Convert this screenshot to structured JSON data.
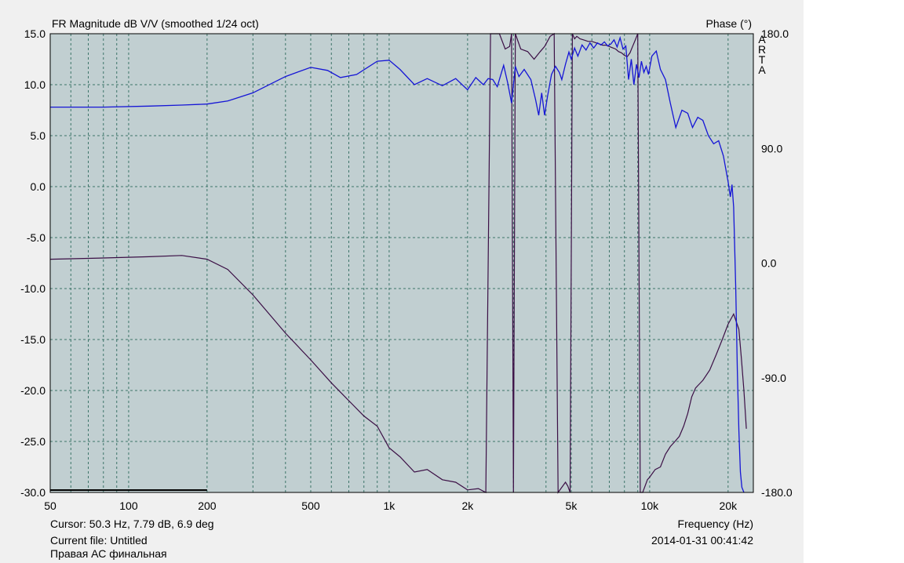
{
  "header": {
    "title": "FR Magnitude dB V/V (smoothed 1/24 oct)",
    "phase_label": "Phase (°)",
    "brand": [
      "A",
      "R",
      "T",
      "A"
    ]
  },
  "footer": {
    "cursor": "Cursor: 50.3 Hz, 7.79 dB, 6.9 deg",
    "file": "Current file: Untitled",
    "note": "Правая АС финальная",
    "xlabel": "Frequency (Hz)",
    "timestamp": "2014-01-31   00:41:42"
  },
  "colors": {
    "plot_bg": "#c1cfd1",
    "grid": "#2f6b5e",
    "magnitude": "#1515d6",
    "phase": "#3b0f45",
    "frame_bg": "#f0f0f0"
  },
  "chart_data": {
    "type": "line",
    "title": "FR Magnitude dB V/V (smoothed 1/24 oct)",
    "xlabel": "Frequency (Hz)",
    "ylabel": "FR Magnitude dB V/V",
    "y2label": "Phase (°)",
    "xscale": "log",
    "xlim": [
      50,
      25000
    ],
    "ylim": [
      -30,
      15
    ],
    "y2lim": [
      -180,
      180
    ],
    "grid": true,
    "x_ticks": [
      {
        "value": 50,
        "label": "50"
      },
      {
        "value": 100,
        "label": "100"
      },
      {
        "value": 200,
        "label": "200"
      },
      {
        "value": 500,
        "label": "500"
      },
      {
        "value": 1000,
        "label": "1k"
      },
      {
        "value": 2000,
        "label": "2k"
      },
      {
        "value": 5000,
        "label": "5k"
      },
      {
        "value": 10000,
        "label": "10k"
      },
      {
        "value": 20000,
        "label": "20k"
      }
    ],
    "y_ticks": [
      {
        "value": 15,
        "label": "15.0"
      },
      {
        "value": 10,
        "label": "10.0"
      },
      {
        "value": 5,
        "label": "5.0"
      },
      {
        "value": 0,
        "label": "0.0"
      },
      {
        "value": -5,
        "label": "-5.0"
      },
      {
        "value": -10,
        "label": "-10.0"
      },
      {
        "value": -15,
        "label": "-15.0"
      },
      {
        "value": -20,
        "label": "-20.0"
      },
      {
        "value": -25,
        "label": "-25.0"
      },
      {
        "value": -30,
        "label": "-30.0"
      }
    ],
    "y2_ticks": [
      {
        "value": 180,
        "label": "180.0"
      },
      {
        "value": 90,
        "label": "90.0"
      },
      {
        "value": 0,
        "label": "0.0"
      },
      {
        "value": -90,
        "label": "-90.0"
      },
      {
        "value": -180,
        "label": "-180.0"
      }
    ],
    "selection_range_hz": [
      50,
      200
    ],
    "series": [
      {
        "axis": "left",
        "x": [
          50,
          80,
          120,
          160,
          200,
          240,
          300,
          400,
          500,
          580,
          650,
          750,
          900,
          1000,
          1100,
          1250,
          1400,
          1600,
          1800,
          2000,
          2150,
          2300,
          2400,
          2500,
          2600,
          2750,
          2850,
          2950,
          3050,
          3150,
          3300,
          3500,
          3650,
          3750,
          3850,
          3950,
          4050,
          4200,
          4350,
          4500,
          4600,
          4750,
          4900,
          5000,
          5150,
          5300,
          5500,
          5700,
          5900,
          6100,
          6300,
          6500,
          6700,
          6900,
          7100,
          7300,
          7500,
          7700,
          7900,
          8100,
          8300,
          8500,
          8700,
          8900,
          9100,
          9300,
          9500,
          9700,
          9900,
          10200,
          10600,
          11000,
          11500,
          12000,
          12600,
          13300,
          14000,
          14600,
          15300,
          16000,
          16800,
          17600,
          18400,
          19200,
          20000,
          20400,
          20700,
          21000,
          21400,
          21700,
          22000,
          22300,
          22600,
          23000
        ],
        "y": [
          7.8,
          7.8,
          7.9,
          8.0,
          8.1,
          8.4,
          9.2,
          10.8,
          11.7,
          11.4,
          10.7,
          11.0,
          12.3,
          12.4,
          11.5,
          10.0,
          10.6,
          9.9,
          10.6,
          9.5,
          10.7,
          10.0,
          10.6,
          10.5,
          9.8,
          11.9,
          10.2,
          8.2,
          11.8,
          10.8,
          11.5,
          10.5,
          8.5,
          7.0,
          9.2,
          7.0,
          8.8,
          11.0,
          11.8,
          11.2,
          10.5,
          12.0,
          13.2,
          12.5,
          13.6,
          12.8,
          13.9,
          13.4,
          14.1,
          13.6,
          14.1,
          13.9,
          14.2,
          13.8,
          14.0,
          14.4,
          13.7,
          14.6,
          13.5,
          13.8,
          10.5,
          12.5,
          10.0,
          12.0,
          10.7,
          12.3,
          11.2,
          11.8,
          11.0,
          12.8,
          13.3,
          11.5,
          10.5,
          8.2,
          5.8,
          7.5,
          7.2,
          5.8,
          6.8,
          6.5,
          5.0,
          4.2,
          4.5,
          3.0,
          0.5,
          -1.0,
          0.2,
          -2.0,
          -10.0,
          -18.0,
          -24.0,
          -28.0,
          -29.5,
          -30.0
        ]
      },
      {
        "axis": "right",
        "x": [
          50,
          80,
          120,
          160,
          200,
          240,
          300,
          400,
          500,
          600,
          700,
          800,
          900,
          1000,
          1100,
          1250,
          1400,
          1600,
          1800,
          2000,
          2200,
          2350,
          2450,
          2650,
          2790,
          2900,
          2950,
          3000,
          3050,
          3200,
          3400,
          3600,
          3800,
          3950,
          4150,
          4300,
          4450,
          4600,
          4750,
          4850,
          4950,
          5050,
          5150,
          5250,
          5400,
          5600,
          5800,
          6000,
          6200,
          6400,
          6600,
          6800,
          7000,
          7200,
          7400,
          7600,
          7800,
          8000,
          8200,
          8400,
          8600,
          8800,
          9000,
          9200,
          9400,
          9600,
          9800,
          10000,
          10500,
          11000,
          11500,
          12000,
          12500,
          13000,
          13500,
          14000,
          14500,
          15000,
          16000,
          17000,
          18000,
          19000,
          20000,
          21000,
          22000,
          22500,
          23000,
          23500
        ],
        "y": [
          3,
          4,
          5,
          6,
          3,
          -5,
          -25,
          -55,
          -76,
          -94,
          -108,
          -120,
          -128,
          -145,
          -152,
          -164,
          -162,
          -170,
          -172,
          -178,
          -177,
          -180,
          180,
          180,
          168,
          170,
          180,
          -180,
          180,
          168,
          166,
          160,
          166,
          170,
          178,
          180,
          -180,
          -176,
          -172,
          -175,
          -180,
          180,
          176,
          178,
          176,
          175,
          174,
          174,
          173,
          172,
          171,
          171,
          170,
          169,
          168,
          166,
          165,
          163,
          162,
          165,
          170,
          175,
          180,
          -180,
          -180,
          -175,
          -170,
          -168,
          -162,
          -160,
          -150,
          -144,
          -140,
          -136,
          -128,
          -118,
          -105,
          -98,
          -92,
          -84,
          -72,
          -60,
          -48,
          -40,
          -52,
          -75,
          -100,
          -130
        ]
      }
    ]
  }
}
